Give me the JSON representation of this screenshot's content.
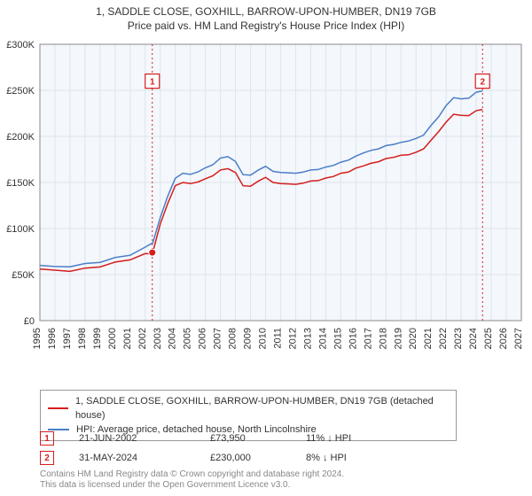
{
  "title_main": "1, SADDLE CLOSE, GOXHILL, BARROW-UPON-HUMBER, DN19 7GB",
  "title_sub": "Price paid vs. HM Land Registry's House Price Index (HPI)",
  "chart": {
    "type": "line",
    "xlim": [
      1995,
      2027
    ],
    "ylim": [
      0,
      300000
    ],
    "ytick_step": 50000,
    "ytick_labels": [
      "£0",
      "£50K",
      "£100K",
      "£150K",
      "£200K",
      "£250K",
      "£300K"
    ],
    "xtick_step": 1,
    "xtick_labels": [
      "1995",
      "1996",
      "1997",
      "1998",
      "1999",
      "2000",
      "2001",
      "2002",
      "2003",
      "2004",
      "2005",
      "2006",
      "2007",
      "2008",
      "2009",
      "2010",
      "2011",
      "2012",
      "2013",
      "2014",
      "2015",
      "2016",
      "2017",
      "2018",
      "2019",
      "2020",
      "2021",
      "2022",
      "2023",
      "2024",
      "2025",
      "2026",
      "2027"
    ],
    "background_color": "#ffffff",
    "plot_bg_color": "#f4f7fb",
    "grid_color": "#dde5ee",
    "axis_text_color": "#333333",
    "series": [
      {
        "name": "price-paid",
        "label": "1, SADDLE CLOSE, GOXHILL, BARROW-UPON-HUMBER, DN19 7GB (detached house)",
        "color": "#d41e1e",
        "line_width": 1.5,
        "data": [
          [
            1995,
            56000
          ],
          [
            1996,
            54000
          ],
          [
            1997,
            55000
          ],
          [
            1998,
            57000
          ],
          [
            1999,
            59000
          ],
          [
            2000,
            62000
          ],
          [
            2001,
            66000
          ],
          [
            2002,
            72000
          ],
          [
            2002.47,
            73950
          ],
          [
            2003,
            105000
          ],
          [
            2003.5,
            128000
          ],
          [
            2004,
            145000
          ],
          [
            2004.5,
            150000
          ],
          [
            2005,
            148000
          ],
          [
            2005.5,
            152000
          ],
          [
            2006,
            154000
          ],
          [
            2006.5,
            158000
          ],
          [
            2007,
            162000
          ],
          [
            2007.5,
            165000
          ],
          [
            2008,
            160000
          ],
          [
            2008.5,
            148000
          ],
          [
            2009,
            146000
          ],
          [
            2009.5,
            152000
          ],
          [
            2010,
            154000
          ],
          [
            2010.5,
            150000
          ],
          [
            2011,
            148000
          ],
          [
            2011.5,
            150000
          ],
          [
            2012,
            148000
          ],
          [
            2012.5,
            150000
          ],
          [
            2013,
            150000
          ],
          [
            2013.5,
            152000
          ],
          [
            2014,
            154000
          ],
          [
            2014.5,
            158000
          ],
          [
            2015,
            160000
          ],
          [
            2015.5,
            162000
          ],
          [
            2016,
            164000
          ],
          [
            2016.5,
            168000
          ],
          [
            2017,
            170000
          ],
          [
            2017.5,
            174000
          ],
          [
            2018,
            176000
          ],
          [
            2018.5,
            178000
          ],
          [
            2019,
            178000
          ],
          [
            2019.5,
            180000
          ],
          [
            2020,
            182000
          ],
          [
            2020.5,
            188000
          ],
          [
            2021,
            196000
          ],
          [
            2021.5,
            206000
          ],
          [
            2022,
            214000
          ],
          [
            2022.5,
            224000
          ],
          [
            2023,
            222000
          ],
          [
            2023.5,
            224000
          ],
          [
            2024,
            228000
          ],
          [
            2024.42,
            230000
          ]
        ]
      },
      {
        "name": "hpi",
        "label": "HPI: Average price, detached house, North Lincolnshire",
        "color": "#4b7ec7",
        "line_width": 1.5,
        "data": [
          [
            1995,
            60000
          ],
          [
            1996,
            58000
          ],
          [
            1997,
            60000
          ],
          [
            1998,
            62000
          ],
          [
            1999,
            64000
          ],
          [
            2000,
            67000
          ],
          [
            2001,
            71000
          ],
          [
            2002,
            79000
          ],
          [
            2002.5,
            86000
          ],
          [
            2003,
            112000
          ],
          [
            2003.5,
            136000
          ],
          [
            2004,
            153000
          ],
          [
            2004.5,
            160000
          ],
          [
            2005,
            158000
          ],
          [
            2005.5,
            163000
          ],
          [
            2006,
            166000
          ],
          [
            2006.5,
            170000
          ],
          [
            2007,
            175000
          ],
          [
            2007.5,
            178000
          ],
          [
            2008,
            172000
          ],
          [
            2008.5,
            160000
          ],
          [
            2009,
            158000
          ],
          [
            2009.5,
            164000
          ],
          [
            2010,
            166000
          ],
          [
            2010.5,
            162000
          ],
          [
            2011,
            160000
          ],
          [
            2011.5,
            162000
          ],
          [
            2012,
            160000
          ],
          [
            2012.5,
            162000
          ],
          [
            2013,
            162000
          ],
          [
            2013.5,
            164000
          ],
          [
            2014,
            166000
          ],
          [
            2014.5,
            170000
          ],
          [
            2015,
            172000
          ],
          [
            2015.5,
            175000
          ],
          [
            2016,
            177000
          ],
          [
            2016.5,
            182000
          ],
          [
            2017,
            184000
          ],
          [
            2017.5,
            188000
          ],
          [
            2018,
            190000
          ],
          [
            2018.5,
            192000
          ],
          [
            2019,
            192000
          ],
          [
            2019.5,
            195000
          ],
          [
            2020,
            197000
          ],
          [
            2020.5,
            203000
          ],
          [
            2021,
            212000
          ],
          [
            2021.5,
            222000
          ],
          [
            2022,
            232000
          ],
          [
            2022.5,
            242000
          ],
          [
            2023,
            240000
          ],
          [
            2023.5,
            243000
          ],
          [
            2024,
            248000
          ],
          [
            2024.42,
            250000
          ]
        ]
      }
    ],
    "marker_points": [
      {
        "id": "1",
        "x": 2002.47,
        "y": 73950,
        "color": "#d41e1e"
      }
    ],
    "marker_lines": [
      {
        "id": "1",
        "x": 2002.47,
        "color": "#d41e1e",
        "label_y": 260000
      },
      {
        "id": "2",
        "x": 2024.42,
        "color": "#d41e1e",
        "label_y": 260000
      }
    ]
  },
  "legend": {
    "border_color": "#999999",
    "items": [
      {
        "color": "#d41e1e",
        "label": "1, SADDLE CLOSE, GOXHILL, BARROW-UPON-HUMBER, DN19 7GB (detached house)"
      },
      {
        "color": "#4b7ec7",
        "label": "HPI: Average price, detached house, North Lincolnshire"
      }
    ]
  },
  "markers_table": [
    {
      "id": "1",
      "box_color": "#d41e1e",
      "date": "21-JUN-2002",
      "price": "£73,950",
      "pct": "11% ↓ HPI"
    },
    {
      "id": "2",
      "box_color": "#d41e1e",
      "date": "31-MAY-2024",
      "price": "£230,000",
      "pct": "8% ↓ HPI"
    }
  ],
  "footer_line1": "Contains HM Land Registry data © Crown copyright and database right 2024.",
  "footer_line2": "This data is licensed under the Open Government Licence v3.0."
}
